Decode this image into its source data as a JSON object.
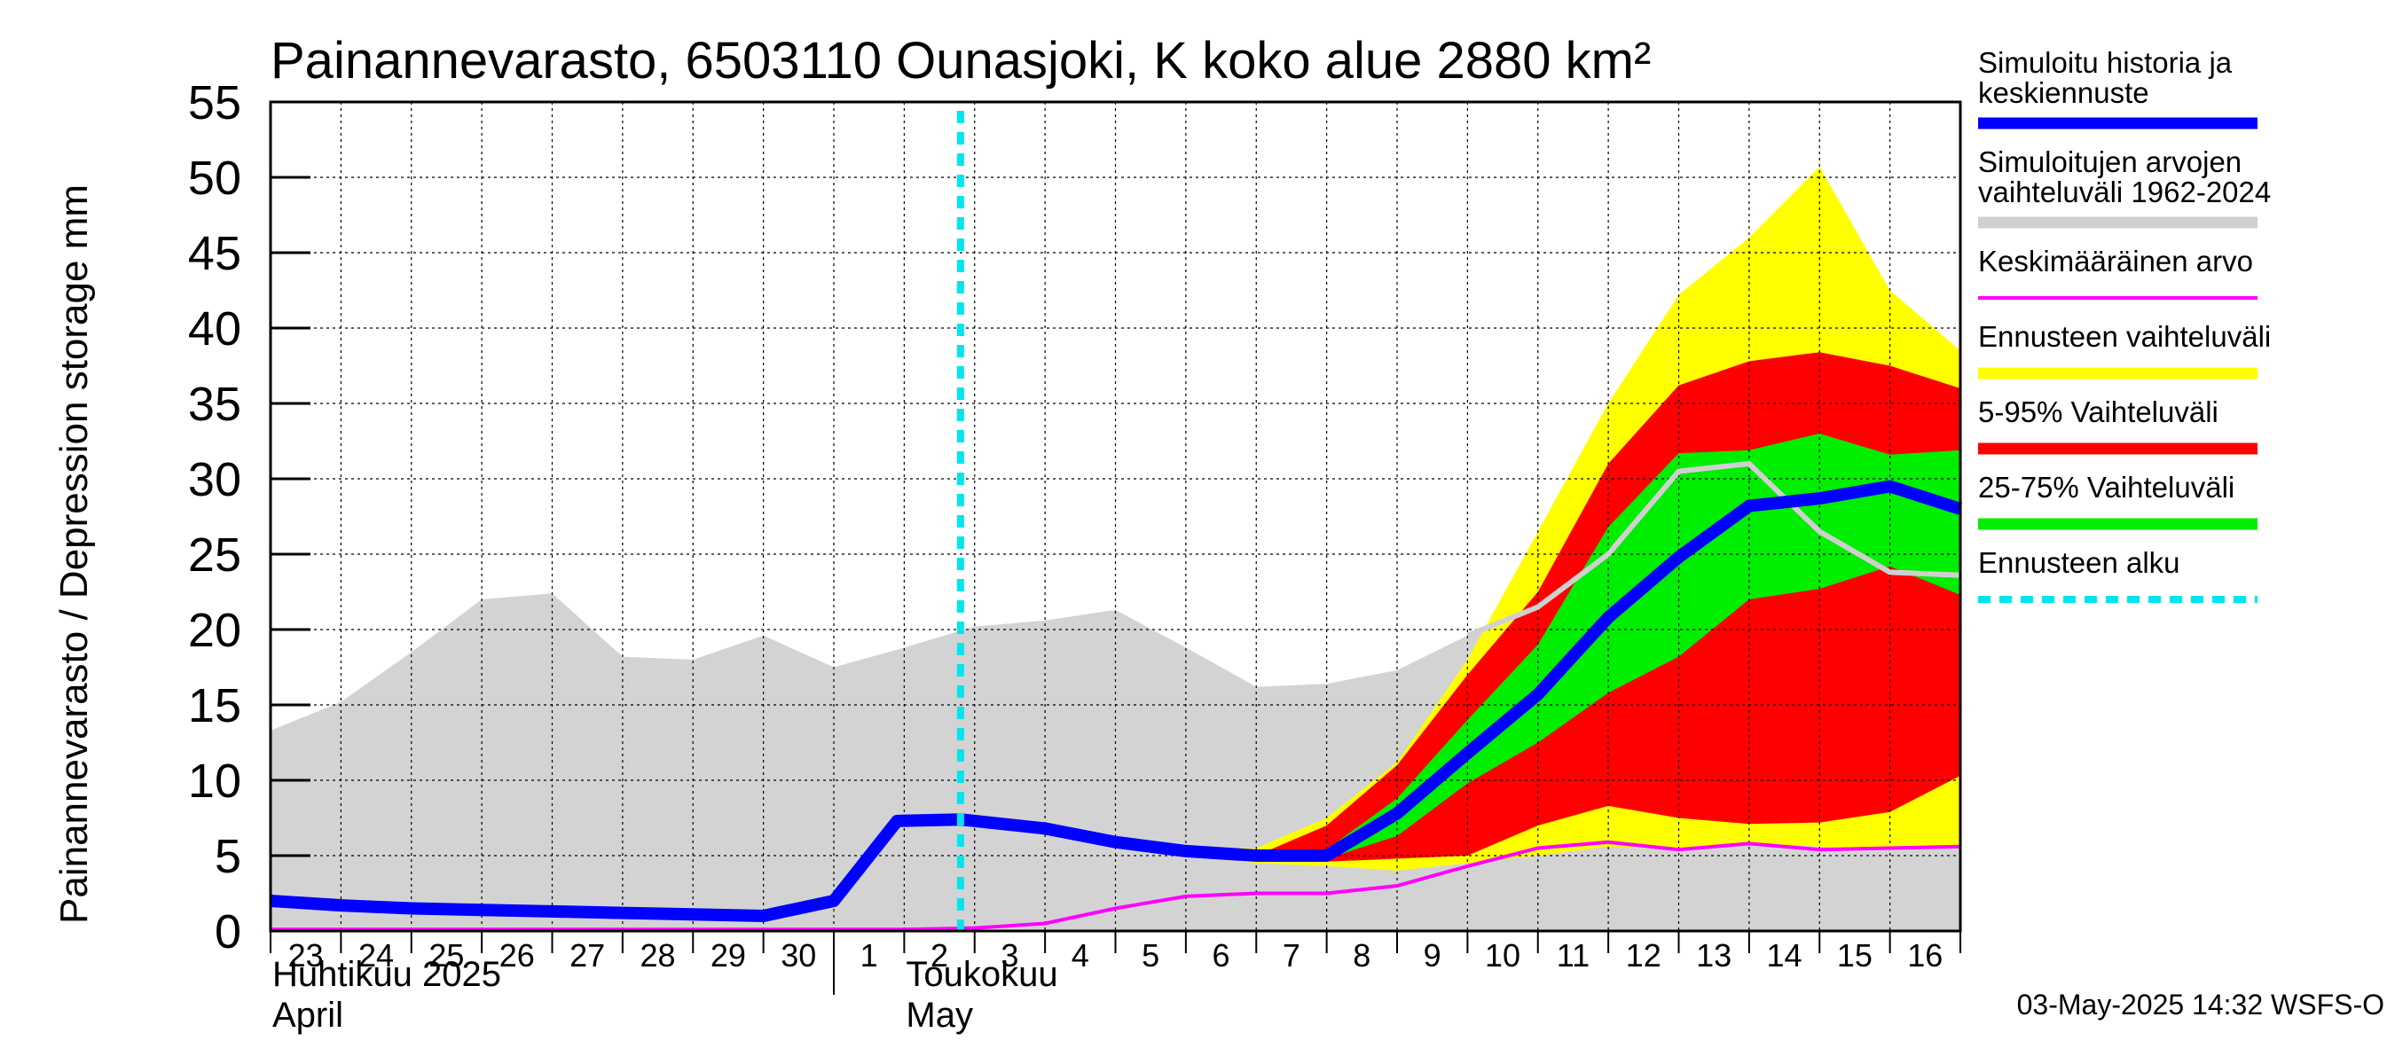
{
  "chart_data": {
    "type": "area",
    "title": "Painannevarasto, 6503110 Ounasjoki, K koko alue 2880 km²",
    "ylabel": "Painannevarasto / Depression storage    mm",
    "ylim": [
      0,
      55
    ],
    "yticks": [
      0,
      5,
      10,
      15,
      20,
      25,
      30,
      35,
      40,
      45,
      50,
      55
    ],
    "x_start_day": 23,
    "x_end_day": 40,
    "day_labels": [
      {
        "day": 23,
        "label": "23"
      },
      {
        "day": 24,
        "label": "24"
      },
      {
        "day": 25,
        "label": "25"
      },
      {
        "day": 26,
        "label": "26"
      },
      {
        "day": 27,
        "label": "27"
      },
      {
        "day": 28,
        "label": "28"
      },
      {
        "day": 29,
        "label": "29"
      },
      {
        "day": 30,
        "label": "30"
      },
      {
        "day": 31,
        "label": "1"
      },
      {
        "day": 32,
        "label": "2"
      },
      {
        "day": 33,
        "label": "3"
      },
      {
        "day": 34,
        "label": "4"
      },
      {
        "day": 35,
        "label": "5"
      },
      {
        "day": 36,
        "label": "6"
      },
      {
        "day": 37,
        "label": "7"
      },
      {
        "day": 38,
        "label": "8"
      },
      {
        "day": 39,
        "label": "9"
      },
      {
        "day": 40,
        "label": "10"
      },
      {
        "day": 41,
        "label": "11"
      },
      {
        "day": 42,
        "label": "12"
      },
      {
        "day": 43,
        "label": "13"
      },
      {
        "day": 44,
        "label": "14"
      },
      {
        "day": 45,
        "label": "15"
      },
      {
        "day": 46,
        "label": "16"
      }
    ],
    "x_end": 47,
    "month_separator_day": 31,
    "months": [
      {
        "day": 23,
        "fi": "Huhtikuu  2025",
        "en": "April"
      },
      {
        "day": 32,
        "fi": "Toukokuu",
        "en": "May"
      }
    ],
    "forecast_start_day": 32.8,
    "history_range": {
      "x": [
        23,
        24,
        25,
        26,
        27,
        28,
        29,
        30,
        31,
        32,
        33,
        34,
        35,
        36,
        37,
        38,
        39,
        40,
        41,
        42,
        43,
        44,
        45,
        46,
        47
      ],
      "upper": [
        13.3,
        15.2,
        18.5,
        22.0,
        22.4,
        18.2,
        18.0,
        19.6,
        17.5,
        18.8,
        20.2,
        20.6,
        21.3,
        18.8,
        16.2,
        16.4,
        17.3,
        19.6,
        21.5,
        25.0,
        30.5,
        31.0,
        26.5,
        23.8,
        23.6
      ],
      "lower": [
        0,
        0,
        0,
        0,
        0,
        0,
        0,
        0,
        0,
        0,
        0,
        0,
        0,
        0,
        0,
        0,
        0,
        0,
        0,
        0,
        0,
        0,
        0,
        0,
        0
      ]
    },
    "forecast_bands": {
      "x": [
        32.8,
        34,
        35,
        36,
        37,
        38,
        39,
        40,
        41,
        42,
        43,
        44,
        45,
        46,
        47
      ],
      "total_upper": [
        7.4,
        6.9,
        6.0,
        5.5,
        5.5,
        7.5,
        11.2,
        18.0,
        26.5,
        35.0,
        42.2,
        46.0,
        50.7,
        42.5,
        38.5
      ],
      "total_lower": [
        7.4,
        6.6,
        5.7,
        5.1,
        4.5,
        4.3,
        4.0,
        4.5,
        5.0,
        5.6,
        5.4,
        5.8,
        5.6,
        5.4,
        5.6
      ],
      "p95": [
        7.4,
        6.9,
        6.0,
        5.5,
        5.0,
        7.0,
        11.0,
        17.0,
        22.5,
        31.0,
        36.2,
        37.8,
        38.4,
        37.5,
        36.0
      ],
      "p05": [
        7.4,
        6.6,
        5.7,
        5.1,
        5.0,
        4.6,
        4.8,
        5.0,
        7.0,
        8.3,
        7.5,
        7.1,
        7.2,
        7.9,
        10.3
      ],
      "p75": [
        7.4,
        6.8,
        5.9,
        5.3,
        5.0,
        5.4,
        8.8,
        14.0,
        19.0,
        26.8,
        31.7,
        31.9,
        33.0,
        31.6,
        31.9
      ],
      "p25": [
        7.4,
        6.7,
        5.8,
        5.2,
        5.0,
        4.8,
        6.3,
        9.8,
        12.5,
        15.8,
        18.2,
        22.0,
        22.7,
        24.2,
        22.3
      ]
    },
    "series": [
      {
        "name": "Simuloitu historia ja keskiennuste",
        "color": "#0000ff",
        "x": [
          23,
          24,
          25,
          26,
          27,
          28,
          29,
          30,
          31,
          31.9,
          32.8,
          34,
          35,
          36,
          37,
          38,
          39,
          40,
          41,
          42,
          43,
          44,
          45,
          46,
          47
        ],
        "values": [
          2.0,
          1.7,
          1.5,
          1.4,
          1.3,
          1.2,
          1.1,
          1.0,
          2.0,
          7.3,
          7.4,
          6.8,
          5.9,
          5.3,
          5.0,
          5.0,
          7.8,
          11.8,
          15.7,
          20.8,
          24.8,
          28.2,
          28.7,
          29.5,
          28.0
        ]
      },
      {
        "name": "Keskimääräinen arvo",
        "color": "#ff00ff",
        "x": [
          23,
          24,
          25,
          26,
          27,
          28,
          29,
          30,
          31,
          32,
          33,
          34,
          35,
          36,
          37,
          38,
          39,
          40,
          41,
          42,
          43,
          44,
          45,
          46,
          47
        ],
        "values": [
          0.1,
          0.1,
          0.1,
          0.1,
          0.1,
          0.1,
          0.1,
          0.1,
          0.1,
          0.1,
          0.2,
          0.5,
          1.5,
          2.3,
          2.5,
          2.5,
          3.0,
          4.3,
          5.5,
          5.9,
          5.4,
          5.8,
          5.4,
          5.5,
          5.6
        ]
      }
    ],
    "legend": [
      {
        "label": "Simuloitu historia ja",
        "label2": "keskiennuste",
        "color": "#0000ff",
        "style": "thick"
      },
      {
        "label": "Simuloitujen arvojen",
        "label2": "vaihteluväli 1962-2024",
        "color": "#d0d0d0",
        "style": "thick"
      },
      {
        "label": "Keskimääräinen arvo",
        "label2": "",
        "color": "#ff00ff",
        "style": "thin"
      },
      {
        "label": "Ennusteen vaihteluväli",
        "label2": "",
        "color": "#ffff00",
        "style": "thick"
      },
      {
        "label": "5-95% Vaihteluväli",
        "label2": "",
        "color": "#ff0000",
        "style": "thick"
      },
      {
        "label": "25-75% Vaihteluväli",
        "label2": "",
        "color": "#00ee00",
        "style": "thick"
      },
      {
        "label": "Ennusteen alku",
        "label2": "",
        "color": "#00e5ee",
        "style": "dashed"
      }
    ],
    "colors": {
      "history": "#d3d3d3",
      "history_line": "#d0d0d0",
      "total": "#ffff00",
      "p5_95": "#ff0000",
      "p25_75": "#00ee00",
      "forecast_start": "#00e5ee"
    },
    "footer": "03-May-2025 14:32 WSFS-O"
  }
}
